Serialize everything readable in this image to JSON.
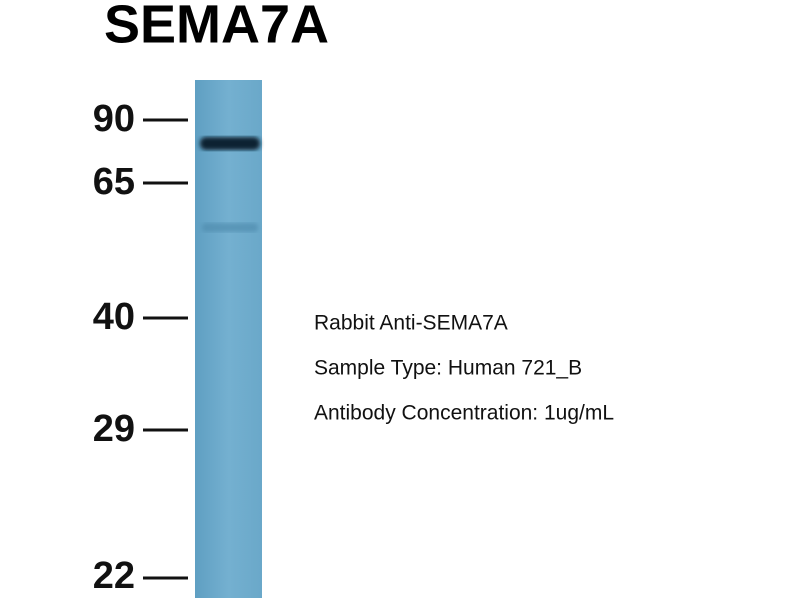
{
  "title": "SEMA7A",
  "markers": [
    "90",
    "65",
    "40",
    "29",
    "22"
  ],
  "info": [
    "Rabbit Anti-SEMA7A",
    "Sample Type: Human 721_B",
    "Antibody Concentration: 1ug/mL"
  ]
}
